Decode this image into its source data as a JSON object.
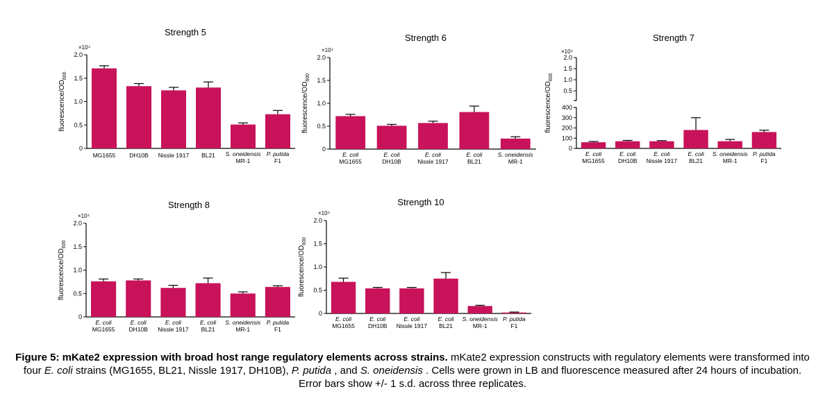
{
  "figure": {
    "caption_bold": "Figure 5: mKate2 expression with broad host range regulatory elements across strains.",
    "caption_p1": " mKate2 expression constructs with regulatory elements were transformed into four ",
    "caption_ecoli": "E. coli",
    "caption_p2": " strains (MG1655, BL21, Nissle 1917, DH10B), ",
    "caption_pputida": "P. putida",
    "caption_p3": " , and ",
    "caption_soneidensis": "S. oneidensis",
    "caption_p4": " . Cells were grown in LB and fluorescence measured after 24 hours of incubation. Error bars show +/- 1 s.d. across three replicates."
  },
  "colors": {
    "bar": "#c8125a",
    "axis": "#000000"
  },
  "chart_data": [
    {
      "type": "bar",
      "title": "Strength 5",
      "ylabel": "fluorescence/OD600",
      "y_multiplier": "×10⁴",
      "ylim": [
        0,
        20000
      ],
      "yticks": [
        0,
        0.5,
        1.0,
        1.5,
        2.0
      ],
      "categories": [
        [
          "",
          "MG1655"
        ],
        [
          "",
          "DH10B"
        ],
        [
          "",
          "Nissle 1917"
        ],
        [
          "",
          "BL21"
        ],
        [
          "S. oneidensis",
          "MR-1"
        ],
        [
          "P. putida",
          "F1"
        ]
      ],
      "values": [
        17100,
        13300,
        12400,
        13000,
        5100,
        7300
      ],
      "errors": [
        550,
        550,
        650,
        1200,
        350,
        800
      ]
    },
    {
      "type": "bar",
      "title": "Strength 6",
      "ylabel": "fluorescence/OD600",
      "y_multiplier": "×10⁴",
      "ylim": [
        0,
        20000
      ],
      "yticks": [
        0,
        0.5,
        1.0,
        1.5,
        2.0
      ],
      "categories": [
        [
          "E. coli",
          "MG1655"
        ],
        [
          "E. coli",
          "DH10B"
        ],
        [
          "E. coli",
          "Nissle 1917"
        ],
        [
          "E. coli",
          "BL21"
        ],
        [
          "S. oneidensis",
          "MR-1"
        ]
      ],
      "values": [
        7200,
        5100,
        5700,
        8100,
        2300
      ],
      "errors": [
        400,
        300,
        400,
        1300,
        400
      ]
    },
    {
      "type": "bar",
      "title": "Strength 7",
      "ylabel": "fluorescence/OD600",
      "y_multiplier": "×10⁴",
      "broken_axis": true,
      "ylim_upper": [
        0.5,
        2.0
      ],
      "yticks_upper": [
        0.5,
        1.0,
        1.5,
        2.0
      ],
      "ylim_lower": [
        0,
        400
      ],
      "yticks_lower": [
        0,
        100,
        200,
        300,
        400
      ],
      "categories": [
        [
          "E. coli",
          "MG1655"
        ],
        [
          "E. coli",
          "DH10B"
        ],
        [
          "E. coli",
          "Nissle 1917"
        ],
        [
          "E. coli",
          "BL21"
        ],
        [
          "S. oneidensis",
          "MR-1"
        ],
        [
          "P. putida",
          "F1"
        ]
      ],
      "values": [
        60,
        70,
        70,
        180,
        70,
        160
      ],
      "errors": [
        8,
        8,
        6,
        120,
        18,
        18
      ]
    },
    {
      "type": "bar",
      "title": "Strength 8",
      "ylabel": "fluorescence/OD600",
      "y_multiplier": "×10⁴",
      "ylim": [
        0,
        20000
      ],
      "yticks": [
        0,
        0.5,
        1.0,
        1.5,
        2.0
      ],
      "categories": [
        [
          "E. coli",
          "MG1655"
        ],
        [
          "E. coli",
          "DH10B"
        ],
        [
          "E. coli",
          "Nissle 1917"
        ],
        [
          "E. coli",
          "BL21"
        ],
        [
          "S. oneidensis",
          "MR-1"
        ],
        [
          "P. putida",
          "F1"
        ]
      ],
      "values": [
        7600,
        7800,
        6200,
        7200,
        5000,
        6400
      ],
      "errors": [
        500,
        300,
        550,
        1100,
        350,
        250
      ]
    },
    {
      "type": "bar",
      "title": "Strength 10",
      "ylabel": "fluorescence/OD600",
      "y_multiplier": "×10⁴",
      "ylim": [
        0,
        20000
      ],
      "yticks": [
        0,
        0.5,
        1.0,
        1.5,
        2.0
      ],
      "categories": [
        [
          "E. coli",
          "MG1655"
        ],
        [
          "E. coli",
          "DH10B"
        ],
        [
          "E. coli",
          "Nissle 1917"
        ],
        [
          "E. coli",
          "BL21"
        ],
        [
          "S. oneidensis",
          "MR-1"
        ],
        [
          "P. putida",
          "F1"
        ]
      ],
      "values": [
        6800,
        5400,
        5400,
        7500,
        1600,
        200
      ],
      "errors": [
        800,
        200,
        200,
        1300,
        150,
        100
      ]
    }
  ]
}
